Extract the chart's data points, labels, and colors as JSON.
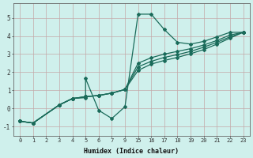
{
  "xlabel": "Humidex (Indice chaleur)",
  "bg_color": "#cff0ec",
  "grid_color": "#c4a8a8",
  "line_color": "#1a6b5a",
  "ylim": [
    -1.5,
    5.8
  ],
  "yticks": [
    -1,
    0,
    1,
    2,
    3,
    4,
    5
  ],
  "xlabels": [
    "0",
    "1",
    "2",
    "3",
    "4",
    "5",
    "6",
    "7",
    "9",
    "15",
    "16",
    "17",
    "18",
    "19",
    "20",
    "21",
    "22",
    "23"
  ],
  "line1_xi": [
    0,
    1,
    3,
    4,
    5,
    5,
    6,
    7,
    8,
    9,
    10,
    11,
    12,
    13,
    14,
    15,
    16,
    17
  ],
  "line1_y": [
    -0.7,
    -0.8,
    0.2,
    0.55,
    0.6,
    1.65,
    -0.1,
    -0.55,
    0.1,
    5.2,
    5.2,
    4.35,
    3.65,
    3.55,
    3.7,
    3.95,
    4.2,
    4.2
  ],
  "line2_xi": [
    0,
    1,
    3,
    4,
    5,
    6,
    7,
    8,
    9,
    10,
    11,
    12,
    13,
    14,
    15,
    16,
    17
  ],
  "line2_y": [
    -0.7,
    -0.8,
    0.2,
    0.55,
    0.65,
    0.72,
    0.85,
    1.05,
    2.5,
    2.8,
    3.0,
    3.15,
    3.3,
    3.5,
    3.75,
    4.05,
    4.2
  ],
  "line3_xi": [
    0,
    1,
    3,
    4,
    5,
    6,
    7,
    8,
    9,
    10,
    11,
    12,
    13,
    14,
    15,
    16,
    17
  ],
  "line3_y": [
    -0.7,
    -0.8,
    0.2,
    0.55,
    0.65,
    0.72,
    0.85,
    1.05,
    2.3,
    2.6,
    2.82,
    2.97,
    3.15,
    3.38,
    3.65,
    3.95,
    4.2
  ],
  "line4_xi": [
    0,
    1,
    3,
    4,
    5,
    6,
    7,
    8,
    9,
    10,
    11,
    12,
    13,
    14,
    15,
    16,
    17
  ],
  "line4_y": [
    -0.7,
    -0.8,
    0.2,
    0.55,
    0.65,
    0.72,
    0.85,
    1.05,
    2.1,
    2.45,
    2.65,
    2.82,
    3.02,
    3.25,
    3.55,
    3.88,
    4.2
  ]
}
